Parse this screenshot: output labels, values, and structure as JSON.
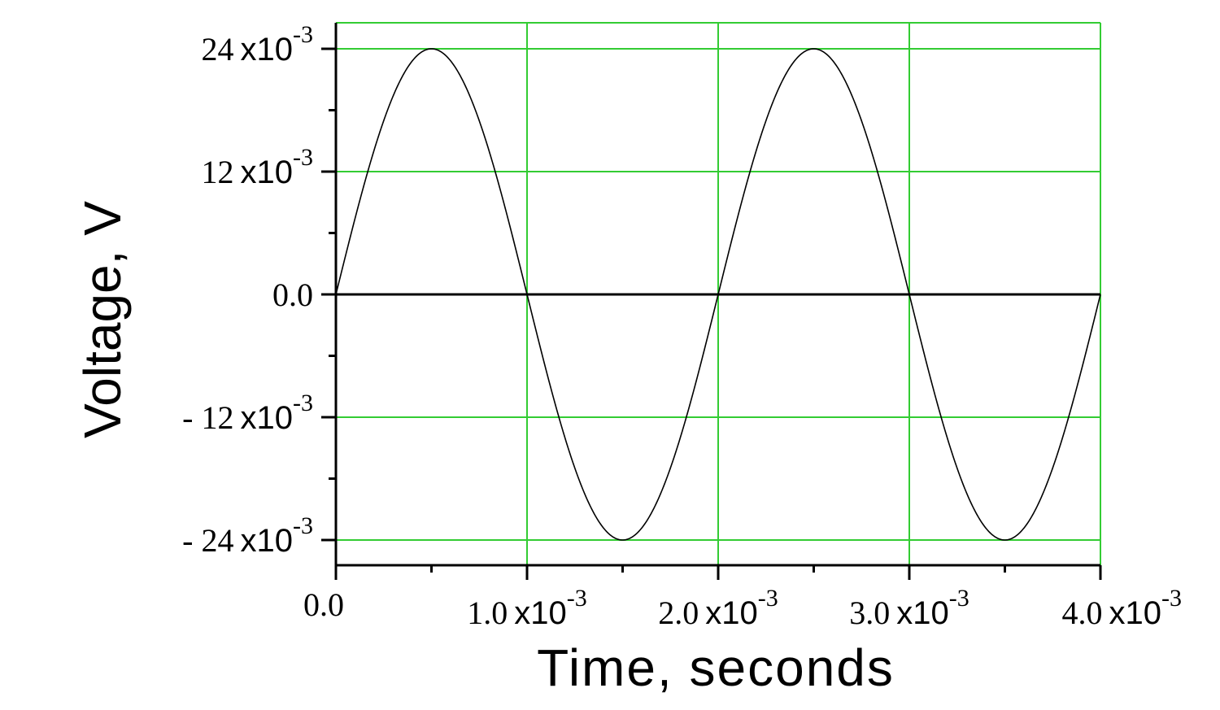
{
  "chart_data": {
    "type": "line",
    "xlabel": "Time, seconds",
    "ylabel": "Voltage, V",
    "xlim": [
      0,
      0.004
    ],
    "ylim": [
      -0.026,
      0.026
    ],
    "grid": true,
    "colors": {
      "grid": "#33cc33",
      "line": "#000000",
      "axis": "#000000"
    },
    "x_ticks": [
      {
        "value": 0.0,
        "mantissa": "0.0",
        "exp": ""
      },
      {
        "value": 0.001,
        "mantissa": "1.0",
        "exp": "-3"
      },
      {
        "value": 0.002,
        "mantissa": "2.0",
        "exp": "-3"
      },
      {
        "value": 0.003,
        "mantissa": "3.0",
        "exp": "-3"
      },
      {
        "value": 0.004,
        "mantissa": "4.0",
        "exp": "-3"
      }
    ],
    "y_ticks": [
      {
        "value": 0.024,
        "mantissa": "24",
        "exp": "-3"
      },
      {
        "value": 0.012,
        "mantissa": "12",
        "exp": "-3"
      },
      {
        "value": 0.0,
        "mantissa": "0.0",
        "exp": ""
      },
      {
        "value": -0.012,
        "mantissa": "- 12",
        "exp": "-3"
      },
      {
        "value": -0.024,
        "mantissa": "- 24",
        "exp": "-3"
      }
    ],
    "series": [
      {
        "function": "sine",
        "amplitude": 0.024,
        "period": 0.002,
        "x_start": 0.0,
        "x_end": 0.004
      }
    ]
  }
}
